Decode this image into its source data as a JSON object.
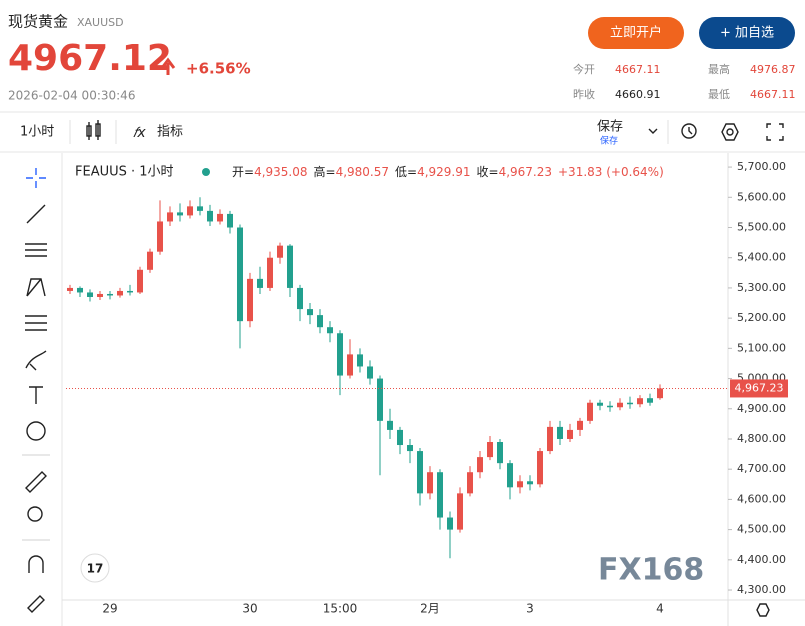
{
  "header": {
    "title": "现货黄金",
    "symbol": "XAUUSD",
    "price": "4967.12",
    "change": "+6.56%",
    "datetime": "2026-02-04 00:30:46",
    "buttons": [
      "立即开户",
      "+ 加自选"
    ],
    "stats": [
      {
        "label": "今开",
        "value": "4667.11"
      },
      {
        "label": "最高",
        "value": "4976.87"
      },
      {
        "label": "昨收",
        "value": "4660.91"
      },
      {
        "label": "最低",
        "value": "4667.11"
      }
    ]
  },
  "toolbar": {
    "interval": "1小时",
    "indicators": "指标",
    "save": "保存",
    "save_sub": "保存"
  },
  "watermark": "FX168",
  "chart_data": {
    "type": "candlestick",
    "symbol": "FEAUUS · 1小时",
    "ohlc_legend": [
      {
        "label": "开=",
        "value": "4,935.08"
      },
      {
        "label": "高=",
        "value": "4,980.57"
      },
      {
        "label": "低=",
        "value": "4,929.91"
      },
      {
        "label": "收=",
        "value": "4,967.23"
      }
    ],
    "legend_change": "+31.83 (+0.64%)",
    "up_color": "#e8524a",
    "down_color": "#22a08e",
    "categories": [
      null,
      null,
      null,
      null,
      "29",
      null,
      null,
      null,
      null,
      null,
      null,
      null,
      null,
      null,
      null,
      null,
      null,
      null,
      "30",
      null,
      null,
      null,
      null,
      null,
      null,
      null,
      null,
      "15:00",
      null,
      null,
      null,
      null,
      null,
      null,
      null,
      null,
      "2月",
      null,
      null,
      null,
      null,
      null,
      null,
      null,
      null,
      null,
      "3",
      null,
      null,
      null,
      null,
      null,
      null,
      null,
      null,
      null,
      null,
      null,
      null,
      "4"
    ],
    "open": [
      5290,
      5300,
      5285,
      5270,
      5280,
      5275,
      5290,
      5285,
      5360,
      5420,
      5520,
      5550,
      5540,
      5570,
      5555,
      5520,
      5545,
      5500,
      5190,
      5330,
      5300,
      5400,
      5440,
      5300,
      5230,
      5210,
      5170,
      5150,
      5010,
      5080,
      5040,
      5000,
      4860,
      4830,
      4780,
      4760,
      4620,
      4690,
      4540,
      4500,
      4620,
      4690,
      4740,
      4790,
      4720,
      4640,
      4660,
      4650,
      4760,
      4840,
      4800,
      4830,
      4860,
      4920,
      4910,
      4905,
      4920,
      4915,
      4935,
      4935.08
    ],
    "high": [
      5310,
      5305,
      5295,
      5290,
      5290,
      5300,
      5310,
      5370,
      5430,
      5590,
      5570,
      5580,
      5590,
      5600,
      5575,
      5560,
      5555,
      5510,
      5350,
      5370,
      5420,
      5450,
      5445,
      5310,
      5250,
      5230,
      5190,
      5160,
      5130,
      5100,
      5060,
      5010,
      4900,
      4840,
      4800,
      4770,
      4710,
      4700,
      4560,
      4640,
      4710,
      4760,
      4810,
      4800,
      4730,
      4680,
      4680,
      4770,
      4860,
      4860,
      4850,
      4870,
      4930,
      4930,
      4925,
      4935,
      4940,
      4945,
      4950,
      4980.57
    ],
    "low": [
      5280,
      5270,
      5255,
      5260,
      5262,
      5268,
      5275,
      5280,
      5350,
      5410,
      5505,
      5520,
      5530,
      5540,
      5505,
      5510,
      5480,
      5100,
      5170,
      5280,
      5290,
      5380,
      5270,
      5190,
      5180,
      5150,
      5120,
      4945,
      5000,
      5020,
      4980,
      4680,
      4800,
      4750,
      4720,
      4580,
      4600,
      4500,
      4405,
      4490,
      4610,
      4670,
      4730,
      4700,
      4600,
      4620,
      4630,
      4640,
      4750,
      4780,
      4790,
      4810,
      4850,
      4895,
      4890,
      4895,
      4900,
      4905,
      4910,
      4929.91
    ],
    "close": [
      5300,
      5285,
      5270,
      5280,
      5275,
      5290,
      5285,
      5360,
      5420,
      5520,
      5550,
      5540,
      5570,
      5555,
      5520,
      5545,
      5500,
      5190,
      5330,
      5300,
      5400,
      5440,
      5300,
      5230,
      5210,
      5170,
      5150,
      5010,
      5080,
      5040,
      5000,
      4860,
      4830,
      4780,
      4760,
      4620,
      4690,
      4540,
      4500,
      4620,
      4690,
      4740,
      4790,
      4720,
      4640,
      4660,
      4650,
      4760,
      4840,
      4800,
      4830,
      4860,
      4920,
      4910,
      4905,
      4920,
      4915,
      4935,
      4920,
      4967.23
    ],
    "price_line": {
      "value": 4967.23,
      "label": "4,967.23"
    },
    "ylim": [
      4267,
      5740
    ],
    "yticks": [
      {
        "value": 4300,
        "label": "4,300.00"
      },
      {
        "value": 4400,
        "label": "4,400.00"
      },
      {
        "value": 4500,
        "label": "4,500.00"
      },
      {
        "value": 4600,
        "label": "4,600.00"
      },
      {
        "value": 4700,
        "label": "4,700.00"
      },
      {
        "value": 4800,
        "label": "4,800.00"
      },
      {
        "value": 4900,
        "label": "4,900.00"
      },
      {
        "value": 5000,
        "label": "5,000.00"
      },
      {
        "value": 5100,
        "label": "5,100.00"
      },
      {
        "value": 5200,
        "label": "5,200.00"
      },
      {
        "value": 5300,
        "label": "5,300.00"
      },
      {
        "value": 5400,
        "label": "5,400.00"
      },
      {
        "value": 5500,
        "label": "5,500.00"
      },
      {
        "value": 5600,
        "label": "5,600.00"
      },
      {
        "value": 5700,
        "label": "5,700.00"
      }
    ],
    "grid": false
  }
}
